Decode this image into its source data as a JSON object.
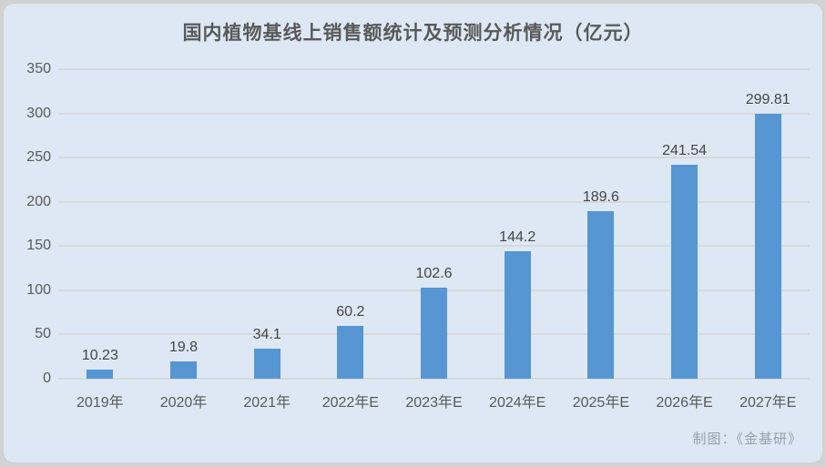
{
  "chart_data": {
    "type": "bar",
    "title": "国内植物基线上销售额统计及预测分析情况（亿元）",
    "categories": [
      "2019年",
      "2020年",
      "2021年",
      "2022年E",
      "2023年E",
      "2024年E",
      "2025年E",
      "2026年E",
      "2027年E"
    ],
    "values": [
      10.23,
      19.8,
      34.1,
      60.2,
      102.6,
      144.2,
      189.6,
      241.54,
      299.81
    ],
    "value_labels": [
      "10.23",
      "19.8",
      "34.1",
      "60.2",
      "102.6",
      "144.2",
      "189.6",
      "241.54",
      "299.81"
    ],
    "xlabel": "",
    "ylabel": "",
    "ylim": [
      0,
      350
    ],
    "ytick_step": 50,
    "ytick_labels": [
      "0",
      "50",
      "100",
      "150",
      "200",
      "250",
      "300",
      "350"
    ],
    "grid": true,
    "legend_position": "none",
    "bar_color": "#5596d3",
    "background_color": "#dde8f4",
    "gridline_color": "#d7d9dd",
    "text_color": "#595959"
  },
  "credit": "制图：《金基研》"
}
